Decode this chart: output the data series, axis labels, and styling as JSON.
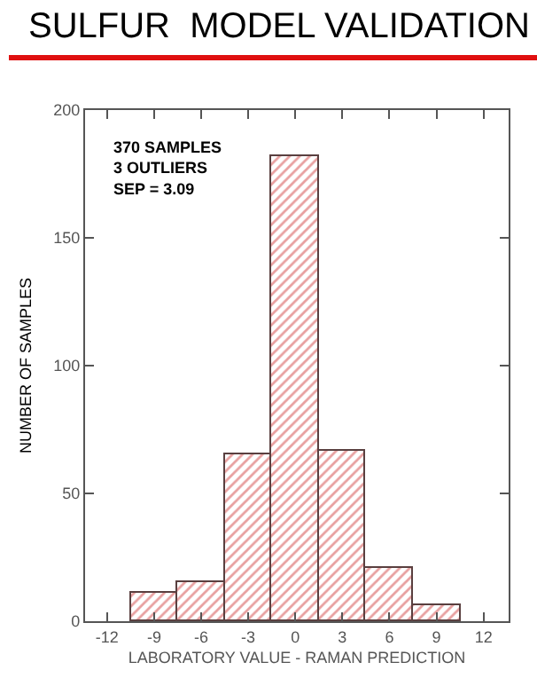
{
  "chart_data": {
    "type": "histogram",
    "title": "SULFUR  MODEL VALIDATION",
    "xlabel": "LABORATORY VALUE - RAMAN PREDICTION",
    "ylabel": "NUMBER OF SAMPLES",
    "annotations": [
      "370 SAMPLES\n3 OUTLIERS\nSEP = 3.09"
    ],
    "bins": [
      -10.5,
      -7.5,
      -4.5,
      -1.5,
      1.5,
      4.5,
      7.5,
      10.5
    ],
    "values": [
      11,
      15,
      65,
      182,
      67,
      21,
      6
    ],
    "color": "#5a4040",
    "xlim": [
      -13.4,
      13.6
    ],
    "xticks": [
      -12,
      -9,
      -6,
      -3,
      0,
      3,
      6,
      9,
      12
    ],
    "ylim": [
      0,
      200
    ],
    "yticks": [
      0,
      50,
      100,
      150,
      200
    ],
    "grid": false,
    "legend": false
  }
}
